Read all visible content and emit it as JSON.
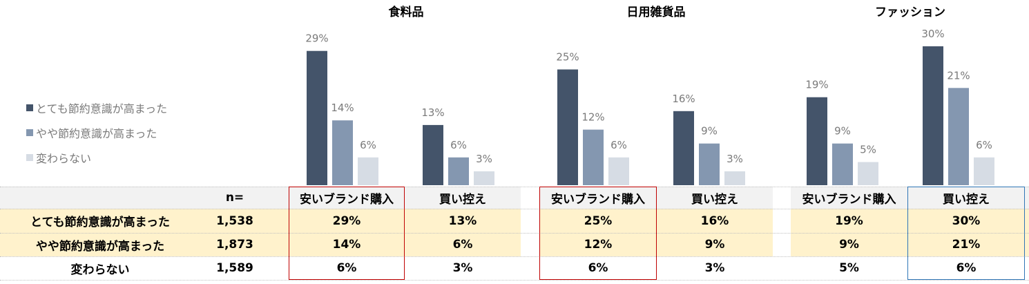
{
  "chart_data": {
    "type": "bar",
    "groups": [
      "食料品",
      "日用雑貨品",
      "ファッション"
    ],
    "categories": [
      "安いブランド購入",
      "買い控え"
    ],
    "series": [
      {
        "name": "とても節約意識が高まった",
        "color": "#44546a"
      },
      {
        "name": "やや節約意識が高まった",
        "color": "#8497b0"
      },
      {
        "name": "変わらない",
        "color": "#d6dce4"
      }
    ],
    "values": [
      [
        [
          29,
          14,
          6
        ],
        [
          13,
          6,
          3
        ]
      ],
      [
        [
          25,
          12,
          6
        ],
        [
          16,
          9,
          3
        ]
      ],
      [
        [
          19,
          9,
          5
        ],
        [
          30,
          21,
          6
        ]
      ]
    ],
    "value_labels": [
      [
        [
          "29%",
          "14%",
          "6%"
        ],
        [
          "13%",
          "6%",
          "3%"
        ]
      ],
      [
        [
          "25%",
          "12%",
          "6%"
        ],
        [
          "16%",
          "9%",
          "3%"
        ]
      ],
      [
        [
          "19%",
          "9%",
          "5%"
        ],
        [
          "30%",
          "21%",
          "6%"
        ]
      ]
    ],
    "legend_position": "left",
    "grid": false
  },
  "table": {
    "n_header": "n=",
    "rows": [
      {
        "label": "とても節約意識が高まった",
        "n": "1,538"
      },
      {
        "label": "やや節約意識が高まった",
        "n": "1,873"
      },
      {
        "label": "変わらない",
        "n": "1,589"
      }
    ],
    "highlight_colors": {
      "red": "#c00000",
      "blue": "#2e75b6"
    },
    "row_fill": "#fff2cc",
    "header_fill": "#f2f2f2"
  }
}
